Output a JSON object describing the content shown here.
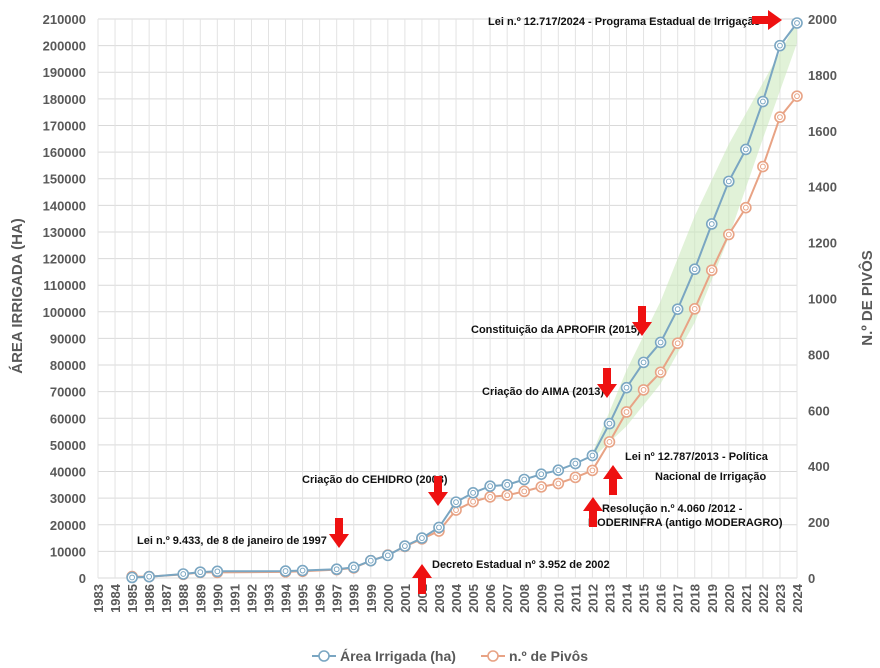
{
  "chart_data": {
    "type": "line",
    "x": [
      1983,
      1984,
      1985,
      1986,
      1987,
      1988,
      1989,
      1990,
      1991,
      1992,
      1993,
      1994,
      1995,
      1996,
      1997,
      1998,
      1999,
      2000,
      2001,
      2002,
      2003,
      2004,
      2005,
      2006,
      2007,
      2008,
      2009,
      2010,
      2011,
      2012,
      2013,
      2014,
      2015,
      2016,
      2017,
      2018,
      2019,
      2020,
      2021,
      2022,
      2023,
      2024
    ],
    "x_tick_labels": [
      "1983",
      "1984",
      "1985",
      "1986",
      "1987",
      "1988",
      "1989",
      "1990",
      "1991",
      "1992",
      "1993",
      "1994",
      "1995",
      "1996",
      "1997",
      "1998",
      "1999",
      "2000",
      "2001",
      "2002",
      "2003",
      "2004",
      "2005",
      "2006",
      "2007",
      "2008",
      "2009",
      "2010",
      "2011",
      "2012",
      "2013",
      "2014",
      "2015",
      "2016",
      "2017",
      "2018",
      "2019",
      "2020",
      "2021",
      "2022",
      "2023",
      "2024"
    ],
    "ylabel": "ÁREA IRRIGADA (HA)",
    "ylabel_right": "N.º DE PIVÔS",
    "ylim": [
      0,
      210000
    ],
    "ylim_right": [
      0,
      2000
    ],
    "y_ticks": [
      0,
      10000,
      20000,
      30000,
      40000,
      50000,
      60000,
      70000,
      80000,
      90000,
      100000,
      110000,
      120000,
      130000,
      140000,
      150000,
      160000,
      170000,
      180000,
      190000,
      200000,
      210000
    ],
    "y_ticks_right": [
      0,
      200,
      400,
      600,
      800,
      1000,
      1200,
      1400,
      1600,
      1800,
      2000
    ],
    "grid": true,
    "legend_position": "bottom",
    "series": [
      {
        "name": "Área Irrigada (ha)",
        "axis": "left",
        "color": "#7aa6c2",
        "points": [
          [
            1985,
            200
          ],
          [
            1986,
            500
          ],
          [
            1988,
            1500
          ],
          [
            1989,
            2200
          ],
          [
            1990,
            2500
          ],
          [
            1994,
            2600
          ],
          [
            1995,
            2800
          ],
          [
            1997,
            3300
          ],
          [
            1998,
            4000
          ],
          [
            1999,
            6500
          ],
          [
            2000,
            8500
          ],
          [
            2001,
            12000
          ],
          [
            2002,
            15000
          ],
          [
            2003,
            19000
          ],
          [
            2004,
            28500
          ],
          [
            2005,
            32000
          ],
          [
            2006,
            34500
          ],
          [
            2007,
            35000
          ],
          [
            2008,
            37000
          ],
          [
            2009,
            39000
          ],
          [
            2010,
            40500
          ],
          [
            2011,
            43000
          ],
          [
            2012,
            46000
          ],
          [
            2013,
            58000
          ],
          [
            2014,
            71500
          ],
          [
            2015,
            81000
          ],
          [
            2016,
            88500
          ],
          [
            2017,
            101000
          ],
          [
            2018,
            116000
          ],
          [
            2019,
            133000
          ],
          [
            2020,
            149000
          ],
          [
            2021,
            161000
          ],
          [
            2022,
            179000
          ],
          [
            2023,
            200000
          ],
          [
            2024,
            208500
          ]
        ]
      },
      {
        "name": "n.º de Pivôs",
        "axis": "right",
        "color": "#e8a385",
        "points": [
          [
            1985,
            5
          ],
          [
            1986,
            5
          ],
          [
            1988,
            13
          ],
          [
            1989,
            20
          ],
          [
            1990,
            20
          ],
          [
            1994,
            22
          ],
          [
            1995,
            24
          ],
          [
            1997,
            30
          ],
          [
            1998,
            36
          ],
          [
            1999,
            62
          ],
          [
            2000,
            82
          ],
          [
            2001,
            113
          ],
          [
            2002,
            140
          ],
          [
            2003,
            168
          ],
          [
            2004,
            243
          ],
          [
            2005,
            273
          ],
          [
            2006,
            290
          ],
          [
            2007,
            296
          ],
          [
            2008,
            310
          ],
          [
            2009,
            326
          ],
          [
            2010,
            338
          ],
          [
            2011,
            360
          ],
          [
            2012,
            385
          ],
          [
            2013,
            487
          ],
          [
            2014,
            594
          ],
          [
            2015,
            673
          ],
          [
            2016,
            736
          ],
          [
            2017,
            840
          ],
          [
            2018,
            963
          ],
          [
            2019,
            1101
          ],
          [
            2020,
            1229
          ],
          [
            2021,
            1325
          ],
          [
            2022,
            1472
          ],
          [
            2023,
            1649
          ],
          [
            2024,
            1724
          ]
        ]
      }
    ],
    "trend_band": {
      "color": "#c9e8b8",
      "x": [
        2012,
        2014,
        2016,
        2018,
        2020,
        2022,
        2024
      ],
      "upper": [
        47000,
        78000,
        104000,
        136000,
        163000,
        186000,
        209000
      ],
      "lower": [
        45000,
        57000,
        73000,
        96000,
        128000,
        165000,
        201000
      ]
    },
    "annotations": [
      {
        "text": "Lei n.º 9.433, de 8 de janeiro de 1997",
        "arrow": "down",
        "at_year": 1997,
        "at_value": 3300
      },
      {
        "text": "Decreto Estadual nº 3.952 de 2002",
        "arrow": "up",
        "at_year": 2002,
        "at_value": 15000
      },
      {
        "text": "Criação do CEHIDRO (2003)",
        "arrow": "down",
        "at_year": 2003,
        "at_value": 19000
      },
      {
        "text": "Resolução n.º 4.060 /2012 -",
        "text2": "MODERINFRA (antigo MODERAGRO)",
        "arrow": "up",
        "at_year": 2012,
        "at_value": 40000
      },
      {
        "text": "Criação do AIMA (2013)",
        "arrow": "down",
        "at_year": 2013,
        "at_value": 58000
      },
      {
        "text": "Lei nº 12.787/2013 - Política",
        "text2": "Nacional de Irrigação",
        "arrow": "up",
        "at_year": 2013,
        "at_value": 51000
      },
      {
        "text": "Constituição da APROFIR (2015)",
        "arrow": "down",
        "at_year": 2015,
        "at_value": 81000
      },
      {
        "text": "Lei n.º 12.717/2024 - Programa Estadual de Irrigação",
        "arrow": "right",
        "at_year": 2024,
        "at_value": 208500
      }
    ]
  }
}
